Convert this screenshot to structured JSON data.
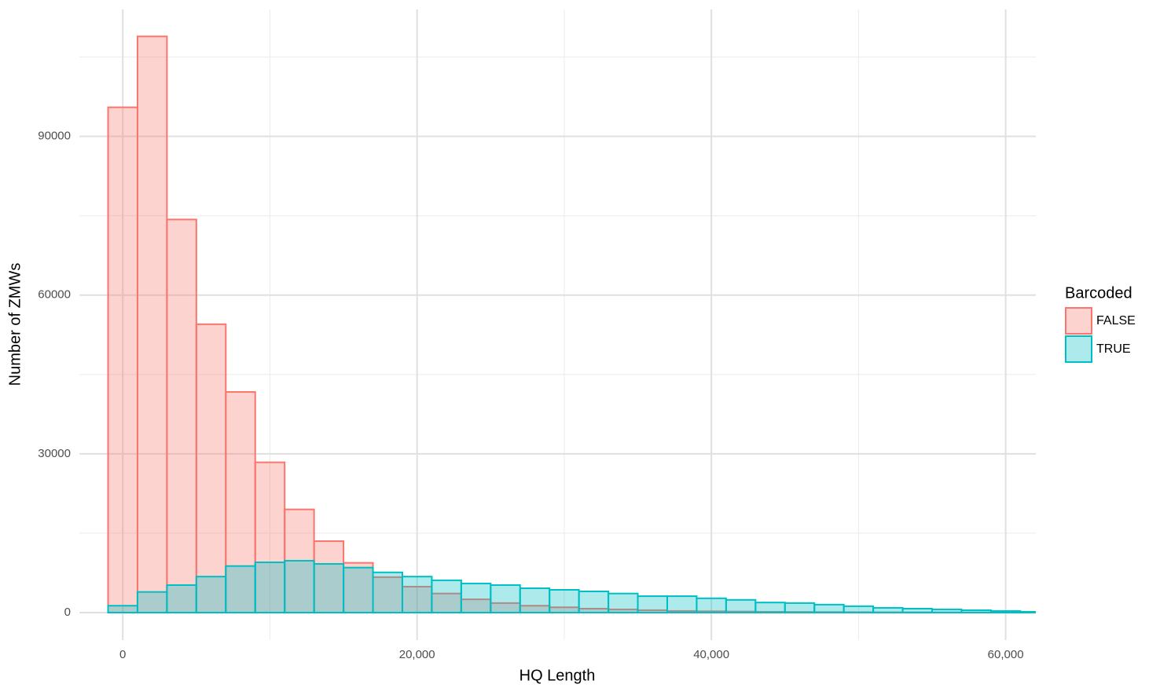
{
  "chart_data": {
    "type": "histogram",
    "x_label": "HQ Length",
    "y_label": "Number of ZMWs",
    "legend_title": "Barcoded",
    "legend_position": "right",
    "bins": [
      -1000,
      1000,
      3000,
      5000,
      7000,
      9000,
      11000,
      13000,
      15000,
      17000,
      19000,
      21000,
      23000,
      25000,
      27000,
      29000,
      31000,
      33000,
      35000,
      37000,
      39000,
      41000,
      43000,
      45000,
      47000,
      49000,
      51000,
      53000,
      55000,
      57000,
      59000,
      61000,
      63000
    ],
    "series": [
      {
        "name": "FALSE",
        "color": "#F8766D",
        "values": [
          95500,
          108900,
          74300,
          54500,
          41700,
          28400,
          19500,
          13500,
          9400,
          6700,
          4900,
          3600,
          2500,
          1800,
          1300,
          1000,
          740,
          600,
          450,
          300,
          250,
          200,
          150,
          120,
          100,
          80,
          60,
          50,
          40,
          30,
          20,
          15
        ]
      },
      {
        "name": "TRUE",
        "color": "#00BFC4",
        "values": [
          1300,
          3900,
          5200,
          6800,
          8800,
          9500,
          9800,
          9200,
          8500,
          7600,
          6800,
          6100,
          5500,
          5200,
          4600,
          4300,
          4000,
          3600,
          3100,
          3100,
          2700,
          2400,
          1900,
          1800,
          1500,
          1200,
          900,
          740,
          600,
          450,
          300,
          150
        ]
      }
    ],
    "xlim": [
      -2950,
      62050
    ],
    "ylim": [
      -5200,
      114000
    ],
    "xticks": [
      0,
      {
        "value": 20000,
        "label": "20,000"
      },
      {
        "value": 40000,
        "label": "40,000"
      },
      {
        "value": 60000,
        "label": "60,000"
      }
    ],
    "yticks": [
      0,
      30000,
      60000,
      90000
    ],
    "grid": true,
    "minor_grid": true
  }
}
